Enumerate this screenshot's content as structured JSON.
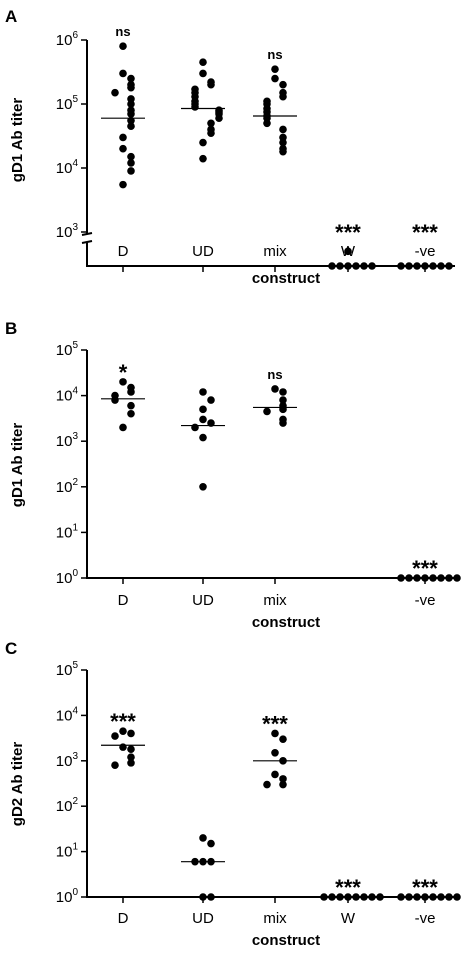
{
  "chart_data": [
    {
      "type": "scatter",
      "panel_label": "A",
      "ylabel": "gD1 Ab titer",
      "xlabel": "construct",
      "yscale": "log",
      "ylim": [
        1000,
        1000000
      ],
      "axis_break": true,
      "y_ticks": [
        {
          "base": "10",
          "exp": "3"
        },
        {
          "base": "10",
          "exp": "4"
        },
        {
          "base": "10",
          "exp": "5"
        },
        {
          "base": "10",
          "exp": "6"
        }
      ],
      "categories": [
        "D",
        "UD",
        "mix",
        "W",
        "-ve"
      ],
      "significance": [
        "ns",
        "",
        "ns",
        "***",
        "***"
      ],
      "groups": [
        {
          "category": "D",
          "median": 60000,
          "points": [
            800000,
            300000,
            250000,
            200000,
            180000,
            150000,
            120000,
            100000,
            80000,
            70000,
            55000,
            45000,
            30000,
            20000,
            15000,
            12000,
            9000,
            5500
          ]
        },
        {
          "category": "UD",
          "median": 85000,
          "points": [
            450000,
            300000,
            220000,
            200000,
            170000,
            150000,
            130000,
            110000,
            100000,
            90000,
            80000,
            75000,
            70000,
            60000,
            50000,
            40000,
            35000,
            25000,
            14000
          ]
        },
        {
          "category": "mix",
          "median": 65000,
          "points": [
            350000,
            250000,
            200000,
            150000,
            130000,
            110000,
            100000,
            85000,
            75000,
            65000,
            60000,
            50000,
            40000,
            30000,
            25000,
            20000,
            18000
          ]
        },
        {
          "category": "W",
          "median": 400,
          "below_break": true,
          "points": [
            700,
            400,
            400,
            400,
            400,
            400,
            400
          ]
        },
        {
          "category": "-ve",
          "median": 400,
          "below_break": true,
          "points": [
            400,
            400,
            400,
            400,
            400,
            400,
            400
          ]
        }
      ]
    },
    {
      "type": "scatter",
      "panel_label": "B",
      "ylabel": "gD1 Ab titer",
      "xlabel": "construct",
      "yscale": "log",
      "ylim": [
        1,
        100000
      ],
      "y_ticks": [
        {
          "base": "10",
          "exp": "0"
        },
        {
          "base": "10",
          "exp": "1"
        },
        {
          "base": "10",
          "exp": "2"
        },
        {
          "base": "10",
          "exp": "3"
        },
        {
          "base": "10",
          "exp": "4"
        },
        {
          "base": "10",
          "exp": "5"
        }
      ],
      "categories": [
        "D",
        "UD",
        "mix",
        "",
        "-ve"
      ],
      "significance": [
        "*",
        "",
        "ns",
        "",
        "***"
      ],
      "groups": [
        {
          "category": "D",
          "median": 8500,
          "points": [
            20000,
            15000,
            12000,
            10000,
            8000,
            6000,
            4000,
            2000
          ]
        },
        {
          "category": "UD",
          "median": 2200,
          "points": [
            12000,
            8000,
            5000,
            3000,
            2500,
            2000,
            1200,
            100
          ]
        },
        {
          "category": "mix",
          "median": 5500,
          "points": [
            14000,
            12000,
            8000,
            6000,
            5000,
            4500,
            3000,
            2500
          ]
        },
        {
          "category": "-ve",
          "median": 1,
          "points": [
            1,
            1,
            1,
            1,
            1,
            1,
            1,
            1
          ]
        }
      ]
    },
    {
      "type": "scatter",
      "panel_label": "C",
      "ylabel": "gD2 Ab titer",
      "xlabel": "construct",
      "yscale": "log",
      "ylim": [
        1,
        100000
      ],
      "y_ticks": [
        {
          "base": "10",
          "exp": "0"
        },
        {
          "base": "10",
          "exp": "1"
        },
        {
          "base": "10",
          "exp": "2"
        },
        {
          "base": "10",
          "exp": "3"
        },
        {
          "base": "10",
          "exp": "4"
        },
        {
          "base": "10",
          "exp": "5"
        }
      ],
      "categories": [
        "D",
        "UD",
        "mix",
        "W",
        "-ve"
      ],
      "significance": [
        "***",
        "",
        "***",
        "***",
        "***"
      ],
      "groups": [
        {
          "category": "D",
          "median": 2200,
          "points": [
            4500,
            4000,
            3500,
            2000,
            1800,
            1200,
            900,
            800
          ]
        },
        {
          "category": "UD",
          "median": 6,
          "points": [
            20,
            15,
            6,
            6,
            6,
            1,
            1
          ]
        },
        {
          "category": "mix",
          "median": 1000,
          "points": [
            4000,
            3000,
            1500,
            1000,
            500,
            400,
            300,
            300
          ]
        },
        {
          "category": "W",
          "median": 1,
          "points": [
            1,
            1,
            1,
            1,
            1,
            1,
            1,
            1
          ]
        },
        {
          "category": "-ve",
          "median": 1,
          "points": [
            1,
            1,
            1,
            1,
            1,
            1,
            1,
            1
          ]
        }
      ]
    }
  ]
}
